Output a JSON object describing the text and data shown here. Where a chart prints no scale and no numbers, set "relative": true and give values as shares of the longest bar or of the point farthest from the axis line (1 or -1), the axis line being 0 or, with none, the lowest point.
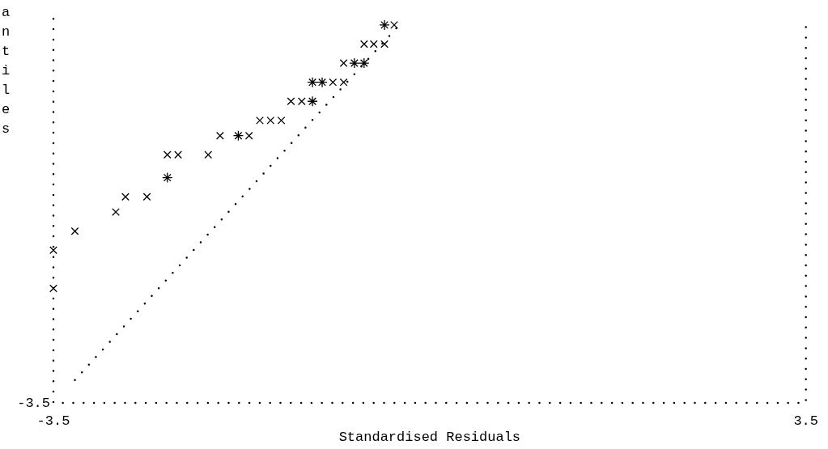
{
  "chart_data": {
    "type": "scatter",
    "xlabel": "Standardised Residuals",
    "ylabel": "antiles",
    "relative": true,
    "annotations": [
      "-3.5"
    ],
    "xlim": [
      -3.5,
      3.5
    ],
    "xticks": [
      -3.5,
      3.5
    ],
    "grid": false,
    "legend": false,
    "series": [
      {
        "type": "scatter",
        "marker": "cross",
        "color": "#000000",
        "x": [
          -0.33,
          -0.61,
          -0.52,
          -0.42,
          -0.8,
          -0.9,
          -0.8,
          -1.29,
          -1.19,
          -1.58,
          -1.48,
          -1.38,
          -1.95,
          -1.68,
          -2.44,
          -2.34,
          -2.06,
          -2.83,
          -2.63,
          -2.92,
          -3.3,
          -3.5,
          -3.5
        ],
        "values": [
          0.99,
          0.94,
          0.94,
          0.94,
          0.89,
          0.84,
          0.84,
          0.79,
          0.79,
          0.74,
          0.74,
          0.74,
          0.7,
          0.7,
          0.65,
          0.65,
          0.65,
          0.54,
          0.54,
          0.5,
          0.45,
          0.4,
          0.3
        ]
      },
      {
        "type": "scatter",
        "color": "#000000",
        "x": [
          -0.42,
          -0.7,
          -0.61,
          -1.09,
          -1.0,
          -1.09,
          -1.78,
          -2.44
        ],
        "values": [
          0.99,
          0.89,
          0.89,
          0.84,
          0.84,
          0.79,
          0.7,
          0.59
        ]
      },
      {
        "type": "line",
        "line_style": "dotted",
        "color": "#000000",
        "x": [
          -3.3,
          -0.25
        ],
        "values": [
          0.06,
          1
        ]
      }
    ]
  }
}
